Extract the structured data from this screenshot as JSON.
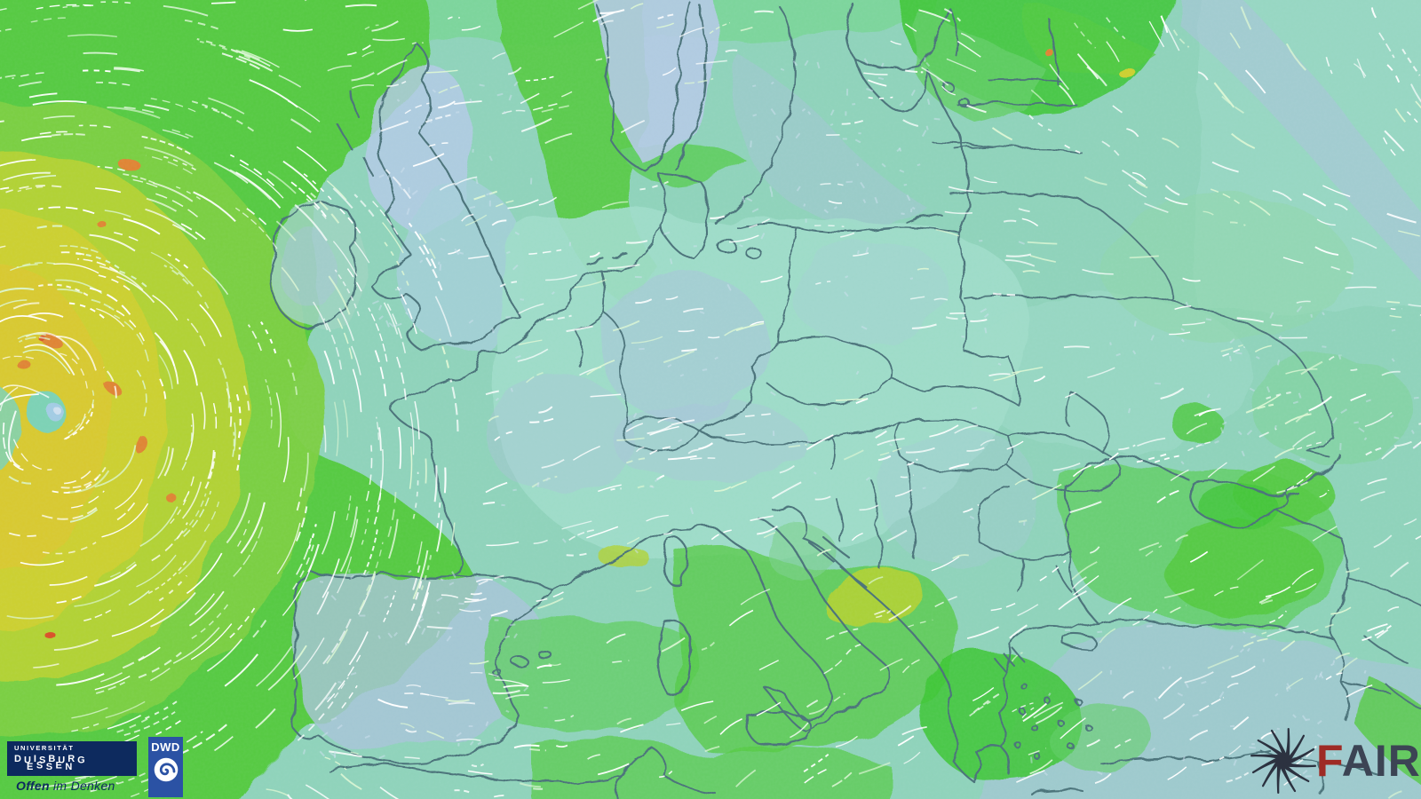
{
  "map": {
    "palette": {
      "base_teal": "#8fd3ba",
      "pale_teal": "#9fdcc9",
      "seafoam_green": "#7ad598",
      "soft_green": "#8fd8a8",
      "mid_green": "#63ce66",
      "wind_green": "#54ca41",
      "bright_green": "#3dc532",
      "yellow_green": "#b2d233",
      "deep_yellow_green": "#cdd02d",
      "gale_yellow": "#d9c92e",
      "storm_orange": "#e08430",
      "storm_red": "#da4f28",
      "land_blue": "#a9c4da",
      "norway_blue": "#b5cae6",
      "eye_teal": "#7cd2b4",
      "eye_blue": "#a3cce4",
      "border_line": "#4e747b",
      "streak_white": "#ffffff",
      "streak_tint": "#dcf6d4",
      "mottle_blue": "#cfe2f0"
    }
  },
  "logos": {
    "ude": {
      "line1": "UNIVERSITÄT",
      "line2": "DUISBURG",
      "line3": "ESSEN",
      "tagline_bold": "Offen",
      "tagline_rest": " im Denken",
      "panel_bg": "#0d2a5e",
      "tagline_color": "#0d2a5e"
    },
    "dwd": {
      "label": "DWD",
      "panel_bg": "#2b52a4",
      "spiral_color": "#2b52a4"
    },
    "fair": {
      "letter_f": "F",
      "letters_air": "AIR",
      "f_color": "#9e2b25",
      "air_color": "#3c4454",
      "icon_color": "#2c3240"
    }
  }
}
